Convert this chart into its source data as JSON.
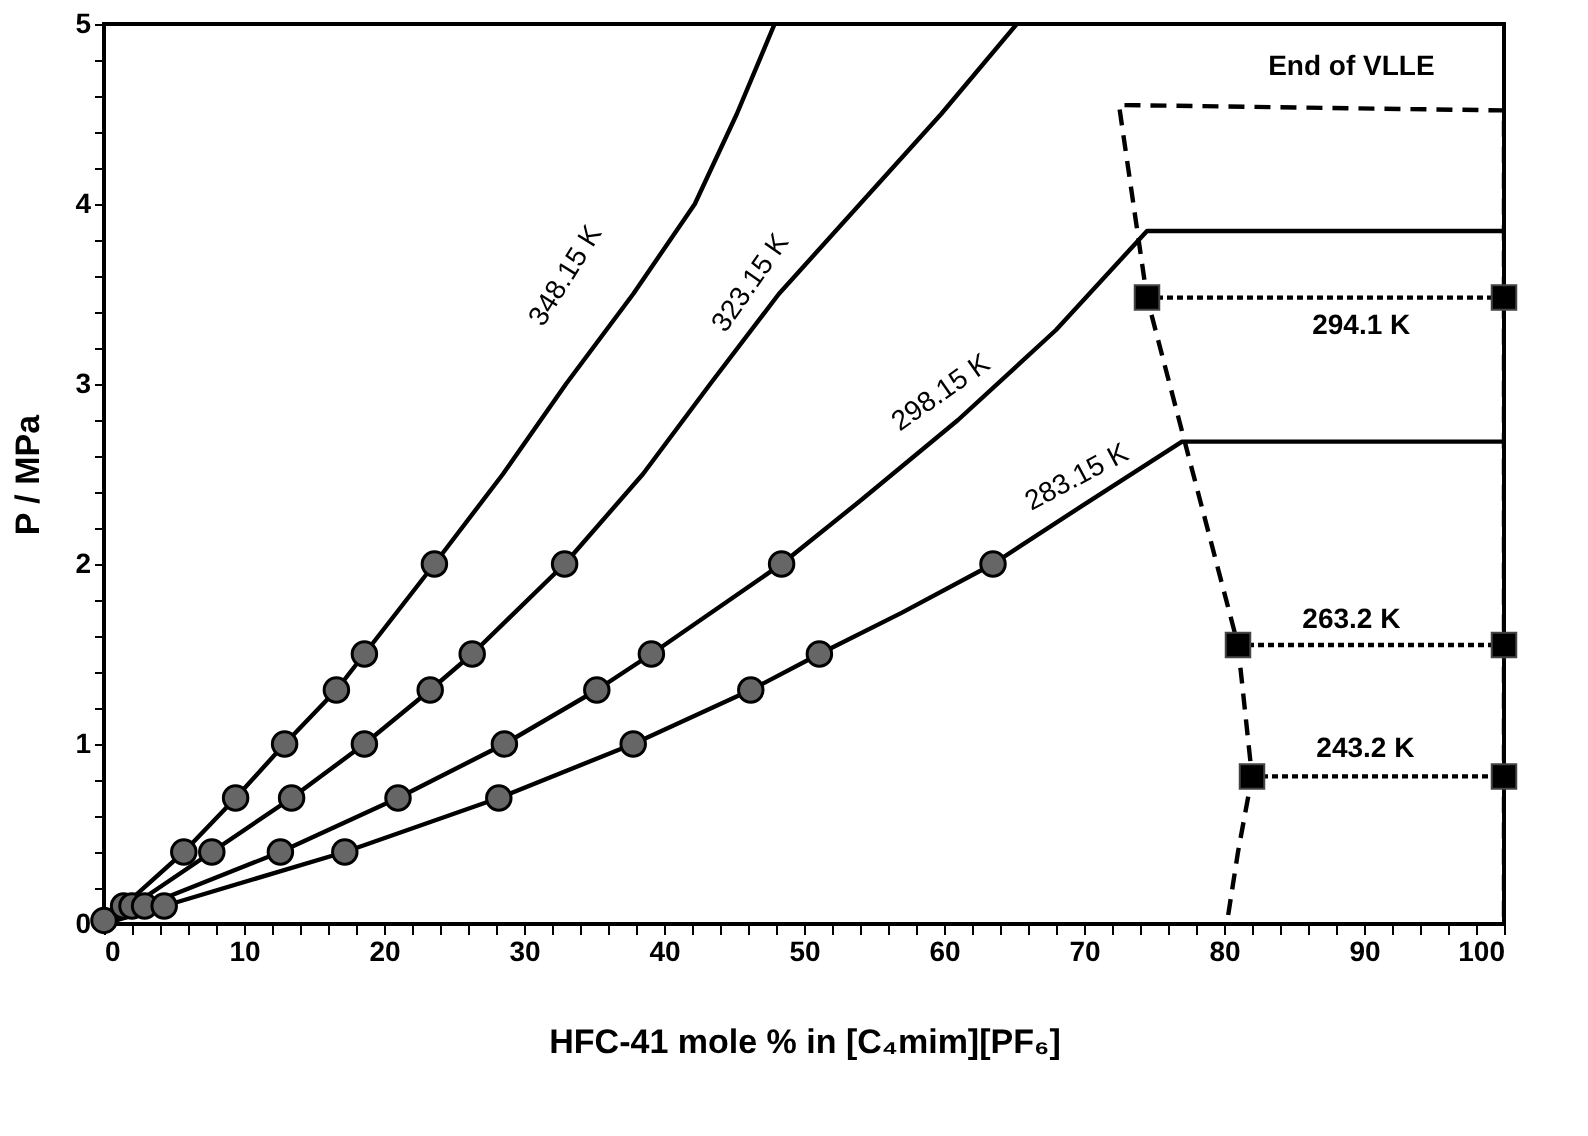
{
  "chart_data": {
    "type": "line",
    "xlabel": "HFC-41 mole % in [C₄mim][PF₆]",
    "ylabel": "P / MPa",
    "xlim": [
      0,
      100
    ],
    "ylim": [
      0,
      5
    ],
    "xticks": [
      0,
      {
        "value": 2,
        "label": null
      },
      {
        "value": 4,
        "label": null
      },
      {
        "value": 6,
        "label": null
      },
      {
        "value": 8,
        "label": null
      },
      10,
      {
        "value": 12,
        "label": null
      },
      {
        "value": 14,
        "label": null
      },
      {
        "value": 16,
        "label": null
      },
      {
        "value": 18,
        "label": null
      },
      20,
      {
        "value": 22,
        "label": null
      },
      {
        "value": 24,
        "label": null
      },
      {
        "value": 26,
        "label": null
      },
      {
        "value": 28,
        "label": null
      },
      30,
      {
        "value": 32,
        "label": null
      },
      {
        "value": 34,
        "label": null
      },
      {
        "value": 36,
        "label": null
      },
      {
        "value": 38,
        "label": null
      },
      40,
      {
        "value": 42,
        "label": null
      },
      {
        "value": 44,
        "label": null
      },
      {
        "value": 46,
        "label": null
      },
      {
        "value": 48,
        "label": null
      },
      50,
      {
        "value": 52,
        "label": null
      },
      {
        "value": 54,
        "label": null
      },
      {
        "value": 56,
        "label": null
      },
      {
        "value": 58,
        "label": null
      },
      60,
      {
        "value": 62,
        "label": null
      },
      {
        "value": 64,
        "label": null
      },
      {
        "value": 66,
        "label": null
      },
      {
        "value": 68,
        "label": null
      },
      70,
      {
        "value": 72,
        "label": null
      },
      {
        "value": 74,
        "label": null
      },
      {
        "value": 76,
        "label": null
      },
      {
        "value": 78,
        "label": null
      },
      80,
      {
        "value": 82,
        "label": null
      },
      {
        "value": 84,
        "label": null
      },
      {
        "value": 86,
        "label": null
      },
      {
        "value": 88,
        "label": null
      },
      90,
      {
        "value": 92,
        "label": null
      },
      {
        "value": 94,
        "label": null
      },
      {
        "value": 96,
        "label": null
      },
      {
        "value": 98,
        "label": null
      },
      100
    ],
    "yticks": [
      0,
      {
        "value": 0.2,
        "label": null
      },
      {
        "value": 0.4,
        "label": null
      },
      {
        "value": 0.6,
        "label": null
      },
      {
        "value": 0.8,
        "label": null
      },
      1,
      {
        "value": 1.2,
        "label": null
      },
      {
        "value": 1.4,
        "label": null
      },
      {
        "value": 1.6,
        "label": null
      },
      {
        "value": 1.8,
        "label": null
      },
      2,
      {
        "value": 2.2,
        "label": null
      },
      {
        "value": 2.4,
        "label": null
      },
      {
        "value": 2.6,
        "label": null
      },
      {
        "value": 2.8,
        "label": null
      },
      3,
      {
        "value": 3.2,
        "label": null
      },
      {
        "value": 3.4,
        "label": null
      },
      {
        "value": 3.6,
        "label": null
      },
      {
        "value": 3.8,
        "label": null
      },
      4,
      {
        "value": 4.2,
        "label": null
      },
      {
        "value": 4.4,
        "label": null
      },
      {
        "value": 4.6,
        "label": null
      },
      {
        "value": 4.8,
        "label": null
      },
      5
    ],
    "grid": false,
    "series": [
      {
        "type": "line",
        "color": "#000000",
        "line_style": "solid",
        "marker": "none",
        "x": [
          0,
          1.4,
          5.7,
          9.4,
          12.9,
          16.6,
          18.6,
          23.6,
          28.5,
          33,
          37.8,
          42.2,
          45.2,
          47.9
        ],
        "values": [
          0,
          0.1,
          0.4,
          0.7,
          1,
          1.3,
          1.5,
          2,
          2.5,
          3,
          3.5,
          4,
          4.5,
          5
        ]
      },
      {
        "type": "line",
        "color": "#000000",
        "line_style": "solid",
        "marker": "none",
        "x": [
          0,
          2,
          7.7,
          13.4,
          18.6,
          23.3,
          26.3,
          32.9,
          38.5,
          43.3,
          48.2,
          54,
          59.8,
          65.2
        ],
        "values": [
          0,
          0.1,
          0.4,
          0.7,
          1,
          1.3,
          1.5,
          2,
          2.5,
          3,
          3.5,
          4,
          4.5,
          5
        ]
      },
      {
        "type": "line",
        "color": "#000000",
        "line_style": "solid",
        "marker": "none",
        "x": [
          0,
          2.9,
          12.6,
          21,
          28.6,
          35.2,
          39.1,
          48.4,
          54,
          61,
          68,
          74.5,
          100
        ],
        "values": [
          0,
          0.1,
          0.4,
          0.7,
          1,
          1.3,
          1.5,
          2,
          2.35,
          2.8,
          3.3,
          3.85,
          3.85
        ]
      },
      {
        "type": "line",
        "color": "#000000",
        "line_style": "solid",
        "marker": "none",
        "x": [
          0,
          4.3,
          17.2,
          28.2,
          37.8,
          46.2,
          51.1,
          57,
          63.5,
          70,
          77,
          100
        ],
        "values": [
          0,
          0.1,
          0.4,
          0.7,
          1,
          1.3,
          1.5,
          1.73,
          2,
          2.33,
          2.68,
          2.68
        ]
      },
      {
        "type": "scatter",
        "color": "#666666",
        "marker": "circle",
        "x": [
          0,
          1.4,
          5.7,
          9.4,
          12.9,
          16.6,
          18.6,
          23.6
        ],
        "values": [
          0.02,
          0.1,
          0.4,
          0.7,
          1,
          1.3,
          1.5,
          2
        ]
      },
      {
        "type": "scatter",
        "color": "#666666",
        "marker": "circle",
        "x": [
          2,
          7.7,
          13.4,
          18.6,
          23.3,
          26.3,
          32.9
        ],
        "values": [
          0.1,
          0.4,
          0.7,
          1,
          1.3,
          1.5,
          2
        ]
      },
      {
        "type": "scatter",
        "color": "#666666",
        "marker": "circle",
        "x": [
          2.9,
          12.6,
          21,
          28.6,
          35.2,
          39.1,
          48.4
        ],
        "values": [
          0.1,
          0.4,
          0.7,
          1,
          1.3,
          1.5,
          2
        ]
      },
      {
        "type": "scatter",
        "color": "#666666",
        "marker": "circle",
        "x": [
          4.3,
          17.2,
          28.2,
          37.8,
          46.2,
          51.1,
          63.5
        ],
        "values": [
          0.1,
          0.4,
          0.7,
          1,
          1.3,
          1.5,
          2
        ]
      },
      {
        "type": "line",
        "color": "#000000",
        "line_style": "dashed",
        "marker": "none",
        "x": [
          80.3,
          81,
          82,
          81,
          74.5,
          72.5,
          100,
          100
        ],
        "values": [
          0.05,
          0.4,
          0.82,
          1.55,
          3.48,
          4.55,
          4.52,
          0
        ]
      },
      {
        "type": "line",
        "color": "#000000",
        "line_style": "dotted",
        "marker": "square",
        "x": [
          74.5,
          100
        ],
        "values": [
          3.48,
          3.48
        ]
      },
      {
        "type": "line",
        "color": "#000000",
        "line_style": "dotted",
        "marker": "square",
        "x": [
          81,
          100
        ],
        "values": [
          1.55,
          1.55
        ]
      },
      {
        "type": "line",
        "color": "#000000",
        "line_style": "dotted",
        "marker": "square",
        "x": [
          82,
          100
        ],
        "values": [
          0.82,
          0.82
        ]
      }
    ],
    "annotations": [
      "348.15 K",
      "323.15 K",
      "298.15 K",
      "283.15 K",
      "294.1 K",
      "263.2 K",
      "243.2 K",
      "End of VLLE"
    ]
  }
}
